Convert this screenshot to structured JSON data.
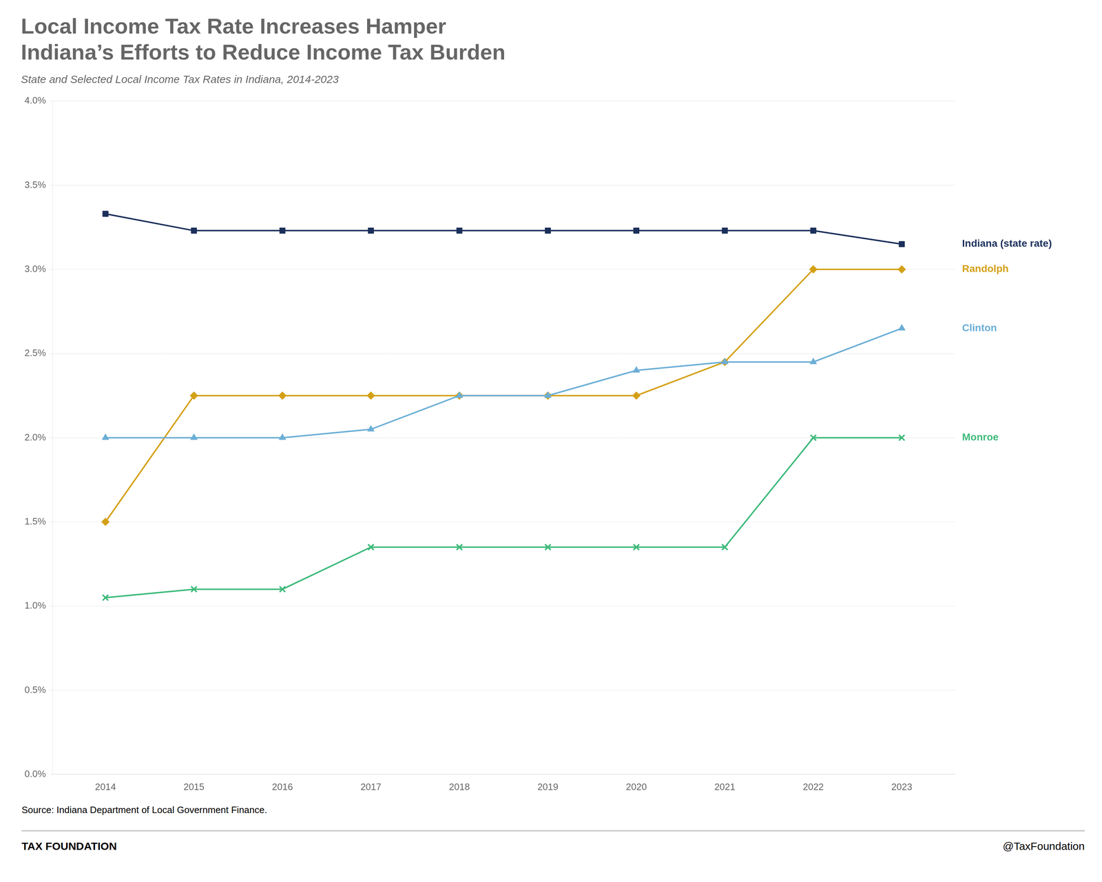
{
  "chart_data": {
    "type": "line",
    "title": "Local Income Tax Rate Increases Hamper\nIndiana’s Efforts to Reduce Income Tax Burden",
    "subtitle": "State and Selected Local Income Tax Rates in Indiana, 2014-2023",
    "source": "Source: Indiana Department of Local Government Finance.",
    "footer_left": "TAX FOUNDATION",
    "footer_right": "@TaxFoundation",
    "x": [
      2014,
      2015,
      2016,
      2017,
      2018,
      2019,
      2020,
      2021,
      2022,
      2023
    ],
    "series": [
      {
        "name": "Indiana (state rate)",
        "color": "#1a2f5a",
        "marker": "square",
        "values": [
          3.33,
          3.23,
          3.23,
          3.23,
          3.23,
          3.23,
          3.23,
          3.23,
          3.23,
          3.15
        ]
      },
      {
        "name": "Clinton",
        "color": "#6baed6",
        "marker": "triangle",
        "values": [
          2.0,
          2.0,
          2.0,
          2.05,
          2.25,
          2.25,
          2.4,
          2.45,
          2.45,
          2.65
        ]
      },
      {
        "name": "Randolph",
        "color": "#d4a017",
        "marker": "diamond",
        "values": [
          1.5,
          2.25,
          2.25,
          2.25,
          2.25,
          2.25,
          2.25,
          2.45,
          3.0,
          3.0
        ]
      },
      {
        "name": "Monroe",
        "color": "#3dba7a",
        "marker": "x",
        "values": [
          1.05,
          1.1,
          1.1,
          1.35,
          1.35,
          1.35,
          1.35,
          1.35,
          2.0,
          2.0
        ]
      }
    ],
    "xlim": [
      2013.4,
      2023.6
    ],
    "xticks": [
      2014,
      2015,
      2016,
      2017,
      2018,
      2019,
      2020,
      2021,
      2022,
      2023
    ],
    "ylim": [
      0.0,
      4.0
    ],
    "yticks": [
      {
        "value": 0.0,
        "label": "0.0%"
      },
      {
        "value": 0.5,
        "label": "0.5%"
      },
      {
        "value": 1.0,
        "label": "1.0%"
      },
      {
        "value": 1.5,
        "label": "1.5%"
      },
      {
        "value": 2.0,
        "label": "2.0%"
      },
      {
        "value": 2.5,
        "label": "2.5%"
      },
      {
        "value": 3.0,
        "label": "3.0%"
      },
      {
        "value": 3.5,
        "label": "3.5%"
      },
      {
        "value": 4.0,
        "label": "4.0%"
      }
    ],
    "grid": "y"
  }
}
